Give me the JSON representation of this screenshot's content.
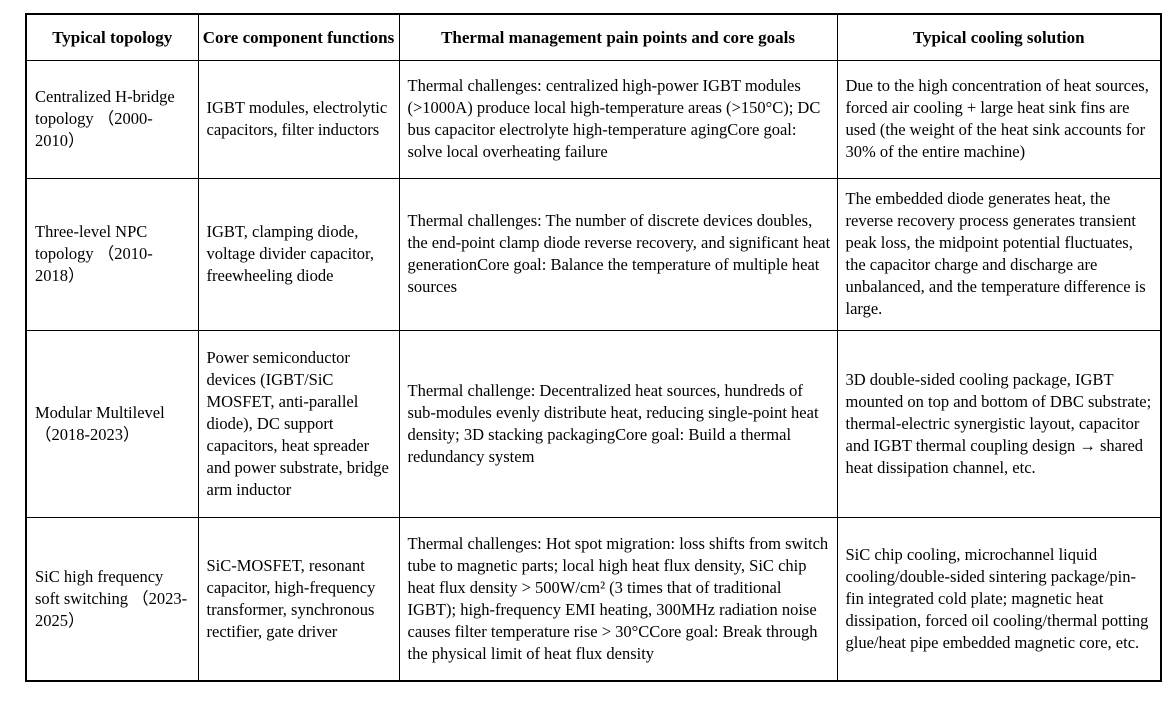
{
  "colors": {
    "border": "#000000",
    "text": "#000000",
    "background": "#ffffff"
  },
  "table": {
    "headers": [
      "Typical topology",
      "Core component functions",
      "Thermal management pain points and core goals",
      "Typical cooling solution"
    ],
    "rows": [
      [
        "Centralized H-bridge topology （2000-2010）",
        "IGBT modules, electrolytic capacitors, filter inductors",
        "Thermal challenges: centralized high-power IGBT modules (>1000A) produce local high-temperature areas (>150°C); DC bus capacitor electrolyte high-temperature agingCore goal: solve local overheating failure",
        "Due to the high concentration of heat sources, forced air cooling + large heat sink fins are used (the weight of the heat sink accounts for 30% of the entire machine)"
      ],
      [
        "Three-level NPC topology （2010-2018）",
        "IGBT, clamping diode, voltage divider capacitor, freewheeling diode",
        "Thermal challenges: The number of discrete devices doubles, the end-point clamp diode reverse recovery, and significant heat generationCore goal: Balance the temperature of multiple heat sources",
        "The embedded diode generates heat, the reverse recovery process generates transient peak loss, the midpoint potential fluctuates, the capacitor charge and discharge are unbalanced, and the temperature difference is large."
      ],
      [
        "Modular Multilevel （2018-2023）",
        "Power semiconductor devices (IGBT/SiC MOSFET, anti-parallel diode), DC support capacitors, heat spreader and power substrate, bridge arm inductor",
        "Thermal challenge: Decentralized heat sources, hundreds of sub-modules evenly distribute heat, reducing single-point heat density; 3D stacking packagingCore goal: Build a thermal redundancy system",
        "3D double-sided cooling package, IGBT mounted on top and bottom of DBC substrate; thermal-electric synergistic layout, capacitor and IGBT thermal coupling design → shared heat dissipation channel, etc."
      ],
      [
        "SiC high frequency soft switching （2023-2025）",
        "SiC-MOSFET, resonant capacitor, high-frequency transformer, synchronous rectifier, gate driver",
        "Thermal challenges: Hot spot migration: loss shifts from switch tube to magnetic parts; local high heat flux density, SiC chip heat flux density > 500W/cm² (3 times that of traditional IGBT); high-frequency EMI heating, 300MHz radiation noise causes filter temperature rise > 30°CCore goal: Break through the physical limit of heat flux density",
        "SiC chip cooling, microchannel liquid cooling/double-sided sintering package/pin-fin integrated cold plate; magnetic heat dissipation, forced oil cooling/thermal potting glue/heat pipe embedded magnetic core, etc."
      ]
    ]
  }
}
